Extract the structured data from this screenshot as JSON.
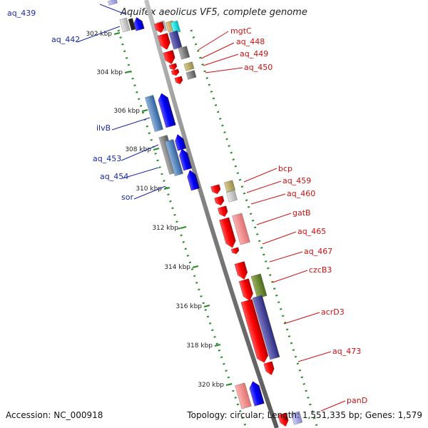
{
  "title": "Aquifex aeolicus VF5, complete genome",
  "footer": {
    "accession": "Accession: NC_000918",
    "summary": "Topology: circular; Length: 1,551,335 bp; Genes: 1,579"
  },
  "colors": {
    "backbone": "#8a8a8a",
    "tick": "#2a8a2a",
    "left_label": "#1a2aa8",
    "right_label": "#cc1111"
  },
  "ticks": [
    "302 kbp",
    "304 kbp",
    "306 kbp",
    "308 kbp",
    "310 kbp",
    "312 kbp",
    "314 kbp",
    "316 kbp",
    "318 kbp",
    "320 kbp"
  ],
  "left_labels": [
    "aq_439",
    "aq_442",
    "ilvB",
    "aq_453",
    "aq_454",
    "sor"
  ],
  "right_labels": [
    "mgtC",
    "aq_448",
    "aq_449",
    "aq_450",
    "bcp",
    "aq_459",
    "aq_460",
    "gatB",
    "aq_465",
    "aq_467",
    "czcB3",
    "acrD3",
    "aq_473",
    "panD"
  ]
}
